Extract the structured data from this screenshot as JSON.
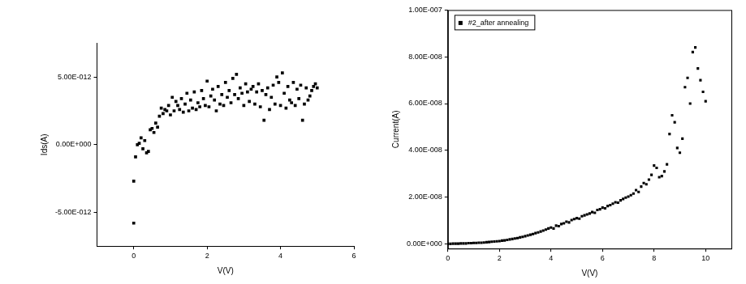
{
  "chart_data": [
    {
      "type": "scatter",
      "x_label": "V(V)",
      "y_label": "Ids(A)",
      "grid": false,
      "color": "#000000",
      "marker": "square",
      "xlim": [
        -1,
        6
      ],
      "xticks": [
        0,
        2,
        4,
        6
      ],
      "ylim": [
        -7.5e-12,
        7.5e-12
      ],
      "yticks": [
        {
          "value": -5e-12,
          "label": "-5.00E-012"
        },
        {
          "value": 0,
          "label": "0.00E+000"
        },
        {
          "value": 5e-12,
          "label": "5.00E-012"
        }
      ],
      "x": [
        0,
        0,
        0.05,
        0.1,
        0.15,
        0.2,
        0.25,
        0.3,
        0.35,
        0.4,
        0.45,
        0.5,
        0.55,
        0.6,
        0.65,
        0.7,
        0.75,
        0.8,
        0.85,
        0.9,
        0.95,
        1.0,
        1.05,
        1.1,
        1.15,
        1.2,
        1.25,
        1.3,
        1.35,
        1.4,
        1.45,
        1.5,
        1.55,
        1.6,
        1.65,
        1.7,
        1.75,
        1.8,
        1.85,
        1.9,
        1.95,
        2.0,
        2.05,
        2.1,
        2.15,
        2.2,
        2.25,
        2.3,
        2.35,
        2.4,
        2.45,
        2.5,
        2.55,
        2.6,
        2.65,
        2.7,
        2.75,
        2.8,
        2.85,
        2.9,
        2.95,
        3.0,
        3.05,
        3.1,
        3.15,
        3.2,
        3.25,
        3.3,
        3.35,
        3.4,
        3.45,
        3.5,
        3.55,
        3.6,
        3.65,
        3.7,
        3.75,
        3.8,
        3.85,
        3.9,
        3.95,
        4.0,
        4.05,
        4.1,
        4.15,
        4.2,
        4.25,
        4.3,
        4.35,
        4.4,
        4.45,
        4.5,
        4.55,
        4.6,
        4.65,
        4.7,
        4.75,
        4.8,
        4.85,
        4.9,
        4.95,
        5.0
      ],
      "values": [
        -5.8e-12,
        -2.7e-12,
        -9e-13,
        0.0,
        1e-13,
        5e-13,
        -3e-13,
        3e-13,
        -6e-13,
        -5e-13,
        1.1e-12,
        1.2e-12,
        9e-13,
        1.6e-12,
        1.3e-12,
        2.1e-12,
        2.7e-12,
        2.3e-12,
        2.6e-12,
        2.5e-12,
        2.9e-12,
        2.2e-12,
        3.5e-12,
        2.5e-12,
        3.2e-12,
        2.9e-12,
        2.6e-12,
        3.4e-12,
        2.4e-12,
        3e-12,
        3.8e-12,
        2.5e-12,
        3.3e-12,
        2.7e-12,
        3.9e-12,
        2.6e-12,
        3.1e-12,
        2.8e-12,
        4e-12,
        3.4e-12,
        2.9e-12,
        4.7e-12,
        2.8e-12,
        3.6e-12,
        4.1e-12,
        3.3e-12,
        2.5e-12,
        4.3e-12,
        3e-12,
        3.7e-12,
        2.9e-12,
        4.6e-12,
        3.5e-12,
        4e-12,
        3.1e-12,
        4.9e-12,
        3.7e-12,
        5.2e-12,
        3.4e-12,
        4.2e-12,
        3.8e-12,
        2.9e-12,
        4.5e-12,
        3.9e-12,
        3.2e-12,
        4.1e-12,
        4.3e-12,
        3e-12,
        3.9e-12,
        4.5e-12,
        2.8e-12,
        4e-12,
        1.8e-12,
        3.7e-12,
        4.2e-12,
        2.6e-12,
        3.5e-12,
        4.4e-12,
        3e-12,
        5e-12,
        4.6e-12,
        2.9e-12,
        5.3e-12,
        3.8e-12,
        2.7e-12,
        4.3e-12,
        3.3e-12,
        3.1e-12,
        4.6e-12,
        2.9e-12,
        4.1e-12,
        3.4e-12,
        4.4e-12,
        1.8e-12,
        3e-12,
        4.2e-12,
        3.3e-12,
        3.6e-12,
        4e-12,
        4.3e-12,
        4.5e-12,
        4.2e-12
      ]
    },
    {
      "type": "scatter",
      "x_label": "V(V)",
      "y_label": "Current(A)",
      "grid": false,
      "legend": "upper left",
      "xlim": [
        0,
        11
      ],
      "xticks": [
        0,
        2,
        4,
        6,
        8,
        10
      ],
      "ylim": [
        -2e-09,
        1e-07
      ],
      "yticks": [
        {
          "value": 0,
          "label": "0.00E+000"
        },
        {
          "value": 2e-08,
          "label": "2.00E-008"
        },
        {
          "value": 4e-08,
          "label": "4.00E-008"
        },
        {
          "value": 6e-08,
          "label": "6.00E-008"
        },
        {
          "value": 8e-08,
          "label": "8.00E-008"
        },
        {
          "value": 1e-07,
          "label": "1.00E-007"
        }
      ],
      "x": [
        0.0,
        0.1,
        0.2,
        0.3,
        0.4,
        0.5,
        0.6,
        0.7,
        0.8,
        0.9,
        1.0,
        1.1,
        1.2,
        1.3,
        1.4,
        1.5,
        1.6,
        1.7,
        1.8,
        1.9,
        2.0,
        2.1,
        2.2,
        2.3,
        2.4,
        2.5,
        2.6,
        2.7,
        2.8,
        2.9,
        3.0,
        3.1,
        3.2,
        3.3,
        3.4,
        3.5,
        3.6,
        3.7,
        3.8,
        3.9,
        4.0,
        4.1,
        4.2,
        4.3,
        4.4,
        4.5,
        4.6,
        4.7,
        4.8,
        4.9,
        5.0,
        5.1,
        5.2,
        5.3,
        5.4,
        5.5,
        5.6,
        5.7,
        5.8,
        5.9,
        6.0,
        6.1,
        6.2,
        6.3,
        6.4,
        6.5,
        6.6,
        6.7,
        6.8,
        6.9,
        7.0,
        7.1,
        7.2,
        7.3,
        7.4,
        7.5,
        7.6,
        7.7,
        7.8,
        7.9,
        8.0,
        8.1,
        8.2,
        8.3,
        8.4,
        8.5,
        8.6,
        8.7,
        8.8,
        8.9,
        9.0,
        9.1,
        9.2,
        9.3,
        9.4,
        9.5,
        9.6,
        9.7,
        9.8,
        9.9,
        10.0
      ],
      "series": [
        {
          "name": "#2_after annealing",
          "color": "#000000",
          "marker": "square",
          "values": [
            0.0,
            0.0,
            1e-10,
            1e-10,
            1e-10,
            2e-10,
            2e-10,
            2e-10,
            3e-10,
            3e-10,
            4e-10,
            4e-10,
            5e-10,
            5e-10,
            6e-10,
            7e-10,
            8e-10,
            9e-10,
            1e-09,
            1.1e-09,
            1.2e-09,
            1.4e-09,
            1.5e-09,
            1.7e-09,
            1.9e-09,
            2.1e-09,
            2.3e-09,
            2.5e-09,
            2.8e-09,
            3e-09,
            3.3e-09,
            3.6e-09,
            3.9e-09,
            4.2e-09,
            4.6e-09,
            4.9e-09,
            5.3e-09,
            5.7e-09,
            6.1e-09,
            6.6e-09,
            7e-09,
            6.6e-09,
            7.8e-09,
            7.6e-09,
            8.5e-09,
            8.8e-09,
            9.5e-09,
            9.2e-09,
            1.02e-08,
            1.06e-08,
            1.1e-08,
            1.08e-08,
            1.18e-08,
            1.22e-08,
            1.26e-08,
            1.3e-08,
            1.36e-08,
            1.33e-08,
            1.45e-08,
            1.48e-08,
            1.55e-08,
            1.52e-08,
            1.62e-08,
            1.66e-08,
            1.72e-08,
            1.78e-08,
            1.76e-08,
            1.86e-08,
            1.92e-08,
            1.98e-08,
            2.02e-08,
            2.08e-08,
            2.15e-08,
            2.3e-08,
            2.22e-08,
            2.45e-08,
            2.6e-08,
            2.55e-08,
            2.75e-08,
            2.95e-08,
            3.35e-08,
            3.25e-08,
            2.85e-08,
            2.9e-08,
            3.1e-08,
            3.4e-08,
            4.7e-08,
            5.5e-08,
            5.2e-08,
            4.1e-08,
            3.9e-08,
            4.5e-08,
            6.7e-08,
            7.1e-08,
            6e-08,
            8.2e-08,
            8.4e-08,
            7.5e-08,
            7e-08,
            6.5e-08,
            6.1e-08
          ]
        }
      ]
    }
  ]
}
